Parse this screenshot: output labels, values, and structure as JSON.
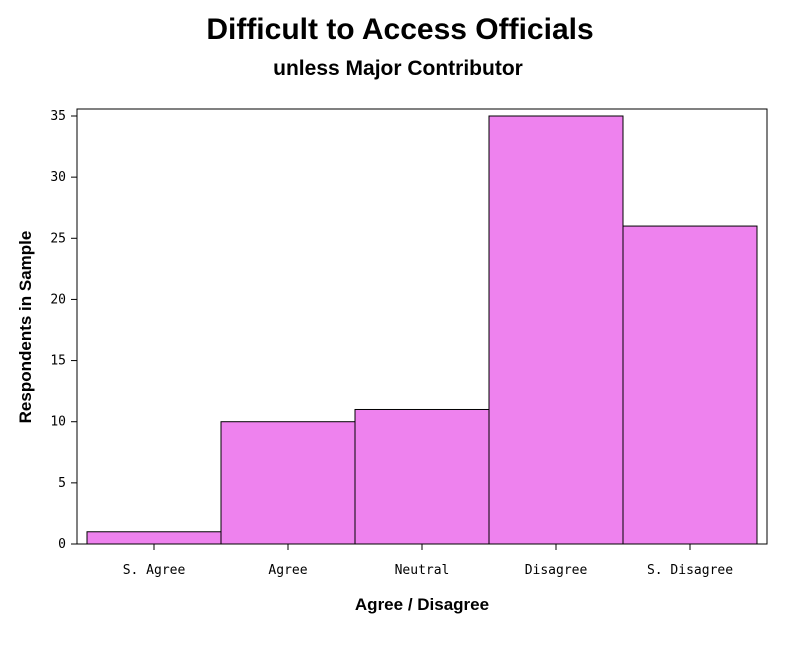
{
  "chart_data": {
    "type": "bar",
    "title": "Difficult to Access Officials",
    "subtitle": "unless Major Contributor",
    "xlabel": "Agree / Disagree",
    "ylabel": "Respondents in Sample",
    "categories": [
      "S. Agree",
      "Agree",
      "Neutral",
      "Disagree",
      "S. Disagree"
    ],
    "values": [
      1,
      10,
      11,
      35,
      26
    ],
    "ylim": [
      0,
      35
    ],
    "yticks": [
      0,
      5,
      10,
      15,
      20,
      25,
      30,
      35
    ],
    "grid": false,
    "bar_color": "#ee82ee"
  }
}
